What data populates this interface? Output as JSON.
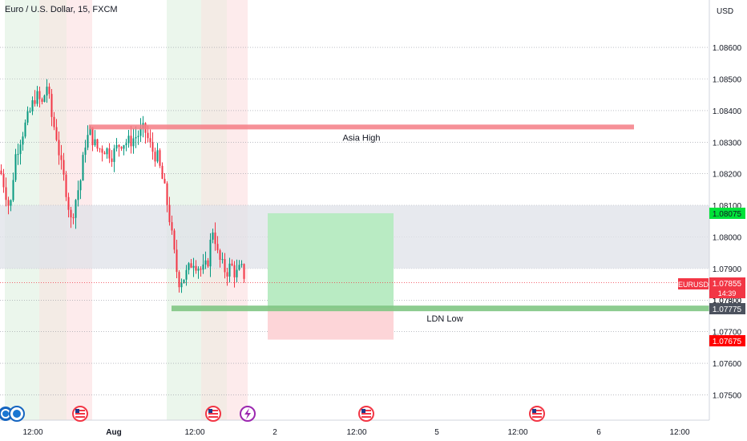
{
  "header": {
    "title": "Euro / U.S. Dollar, 15, FXCM",
    "currency": "USD"
  },
  "chart_data": {
    "type": "candlestick",
    "ylim": [
      1.0742,
      1.0875
    ],
    "y_ticks": [
      "1.08600",
      "1.08500",
      "1.08400",
      "1.08300",
      "1.08200",
      "1.08100",
      "1.08000",
      "1.07900",
      "1.07800",
      "1.07700",
      "1.07600",
      "1.07500"
    ],
    "x_ticks": [
      "12:00",
      "Aug",
      "12:00",
      "2",
      "12:00",
      "5",
      "12:00",
      "6",
      "12:00"
    ],
    "annotations": {
      "asia_high": {
        "label": "Asia High",
        "price": 1.08348
      },
      "ldn_low": {
        "label": "LDN Low",
        "price": 1.07775
      },
      "supply_zone": {
        "from": 1.079,
        "to": 1.081
      },
      "position": {
        "entry": 1.07775,
        "target": 1.08075,
        "stop": 1.07675
      }
    },
    "price_labels": {
      "symbol": "EURUSD",
      "current": "1.07855",
      "countdown": "14:39",
      "hidden_under": "1.07800",
      "target": "1.08075",
      "entry": "1.07775",
      "stop": "1.07675"
    },
    "colors": {
      "up": "#089981",
      "down": "#f23645",
      "target_label": "#00e23a",
      "stop_label": "#ff0000",
      "entry_label": "#4c525e",
      "symbol_label": "#f23645"
    },
    "candles": []
  }
}
